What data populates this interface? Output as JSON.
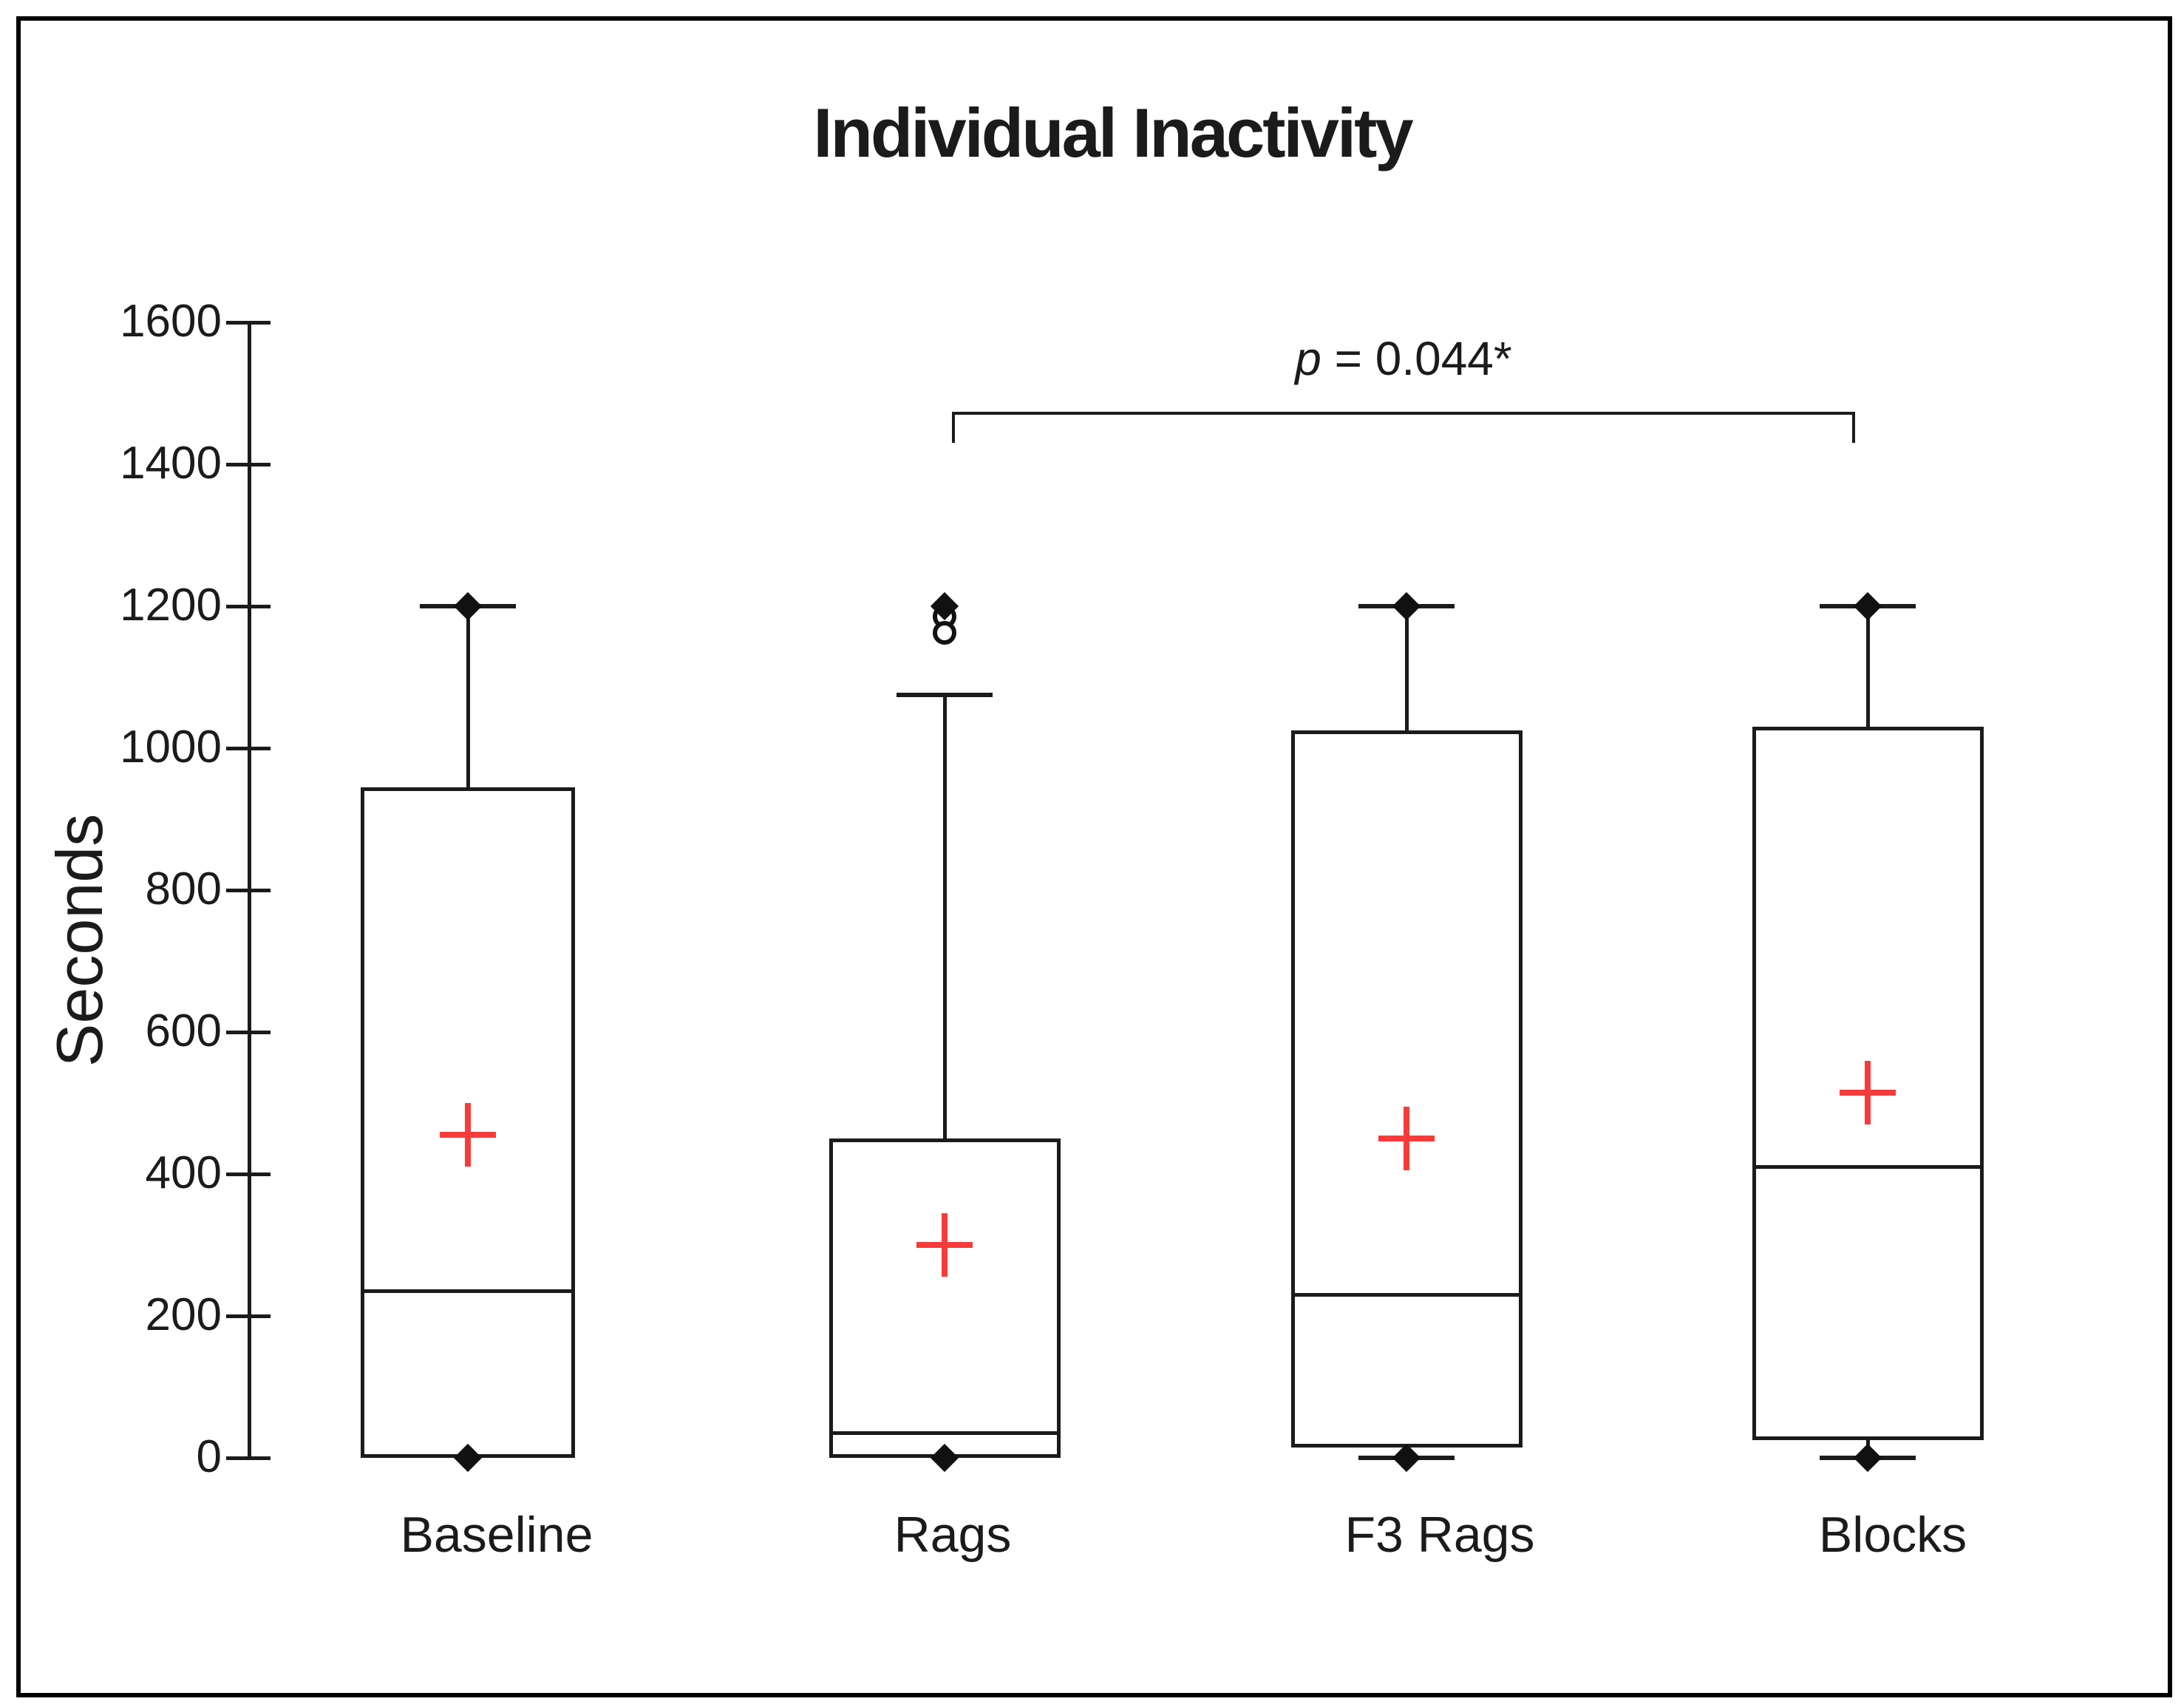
{
  "chart_data": {
    "type": "boxplot",
    "title": "Individual Inactivity",
    "ylabel": "Seconds",
    "xlabel": "",
    "ylim": [
      0,
      1600
    ],
    "yticks": [
      0,
      200,
      400,
      600,
      800,
      1000,
      1200,
      1400,
      1600
    ],
    "grid": false,
    "categories": [
      "Baseline",
      "Rags",
      "F3 Rags",
      "Blocks"
    ],
    "series": [
      {
        "name": "Baseline",
        "whisker_low": null,
        "q1": 0,
        "median": 235,
        "q3": 945,
        "whisker_high": 1200,
        "mean": 455,
        "outliers_diamond": [
          1200,
          0
        ],
        "outliers_circle": []
      },
      {
        "name": "Rags",
        "whisker_low": null,
        "q1": 0,
        "median": 35,
        "q3": 450,
        "whisker_high": 1075,
        "mean": 300,
        "outliers_diamond": [
          1200,
          0
        ],
        "outliers_circle": [
          1185,
          1163
        ]
      },
      {
        "name": "F3 Rags",
        "whisker_low": 0,
        "q1": 15,
        "median": 230,
        "q3": 1025,
        "whisker_high": 1200,
        "mean": 450,
        "outliers_diamond": [
          1200,
          0
        ],
        "outliers_circle": []
      },
      {
        "name": "Blocks",
        "whisker_low": 0,
        "q1": 25,
        "median": 410,
        "q3": 1030,
        "whisker_high": 1200,
        "mean": 515,
        "outliers_diamond": [
          1200,
          0
        ],
        "outliers_circle": []
      }
    ],
    "significance": {
      "p_symbol": "p",
      "rest": " = 0.044*",
      "full_text": "p = 0.044*",
      "from": "Rags",
      "to": "Blocks"
    },
    "legend": null,
    "colors": {
      "line": "#1b1b1b",
      "mean_marker": "#f73b3b",
      "background": "#ffffff",
      "border": "#000000"
    }
  }
}
